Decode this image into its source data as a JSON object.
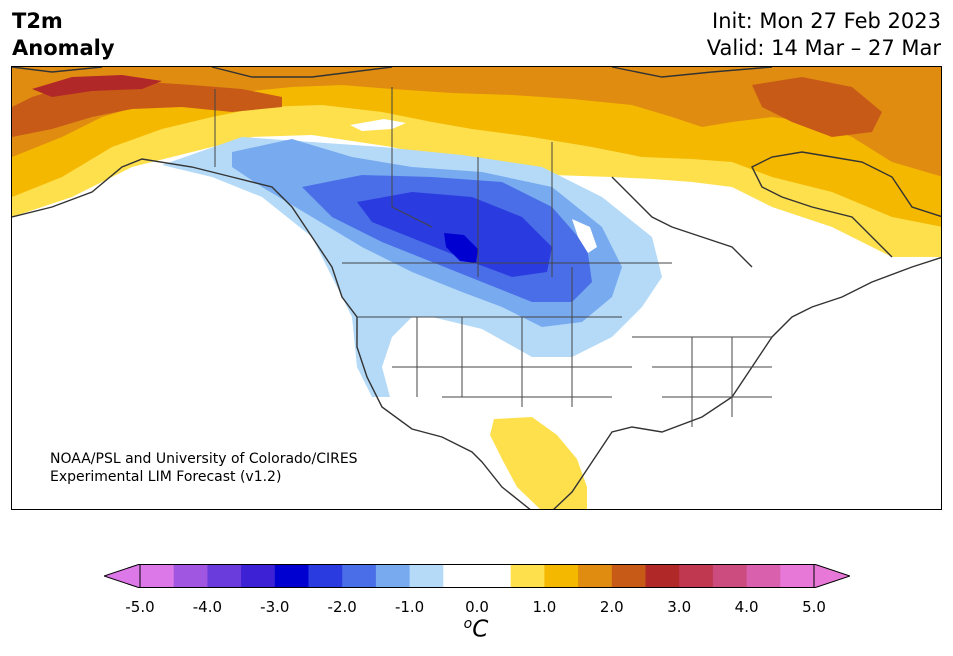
{
  "header": {
    "variable_line1": "T2m",
    "variable_line2": "Anomaly",
    "init_text": "Init: Mon 27 Feb 2023",
    "valid_text": "Valid: 14 Mar – 27 Mar"
  },
  "map": {
    "credit_line1": "NOAA/PSL and University of Colorado/CIRES",
    "credit_line2": "Experimental LIM Forecast (v1.2)"
  },
  "colorbar": {
    "ticks": [
      "-5.0",
      "-4.0",
      "-3.0",
      "-2.0",
      "-1.0",
      "0.0",
      "1.0",
      "2.0",
      "3.0",
      "4.0",
      "5.0"
    ],
    "unit_super": "o",
    "unit_main": "C",
    "colors": [
      "#dc78e8",
      "#a056e0",
      "#6a3cdc",
      "#3c22d4",
      "#0000d0",
      "#2a3ce0",
      "#4a6ee8",
      "#78aaf0",
      "#b4daf8",
      "#ffffff",
      "#ffffff",
      "#fee04c",
      "#f4b800",
      "#e08c10",
      "#c85a18",
      "#b02828",
      "#c03850",
      "#cc4c80",
      "#d860ac",
      "#e878d8"
    ],
    "under_color": "#dc78e8",
    "over_color": "#e878d8"
  }
}
